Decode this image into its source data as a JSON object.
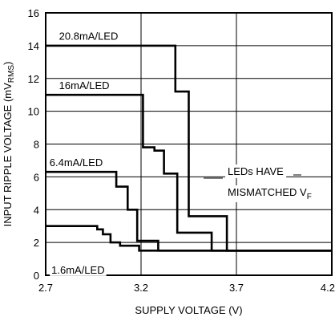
{
  "chart_data": {
    "type": "line",
    "title": "",
    "xlabel": "SUPPLY VOLTAGE (V)",
    "ylabel": {
      "prefix": "INPUT RIPPLE VOLTAGE (mV",
      "sub": "RMS",
      "suffix": ")"
    },
    "xlim": [
      2.7,
      4.2
    ],
    "ylim": [
      0,
      16
    ],
    "grid": true,
    "x_ticks": [
      2.7,
      3.2,
      3.7,
      4.2
    ],
    "x_tick_labels": [
      "2.7",
      "3.2",
      "3.7",
      "4.2"
    ],
    "y_ticks": [
      0,
      2,
      4,
      6,
      8,
      10,
      12,
      14,
      16
    ],
    "y_tick_labels": [
      "0",
      "2",
      "4",
      "6",
      "8",
      "10",
      "12",
      "14",
      "16"
    ],
    "series": [
      {
        "name": "20.8mA/LED",
        "x": [
          2.7,
          3.38,
          3.38,
          3.45,
          3.45,
          3.47,
          3.47,
          3.65,
          3.65,
          4.2
        ],
        "y": [
          14.0,
          14.0,
          11.2,
          11.2,
          3.6,
          3.6,
          3.6,
          3.6,
          1.5,
          1.5
        ]
      },
      {
        "name": "16mA/LED",
        "x": [
          2.7,
          3.21,
          3.21,
          3.27,
          3.27,
          3.32,
          3.32,
          3.39,
          3.39,
          3.57,
          3.57,
          4.2
        ],
        "y": [
          11.0,
          11.0,
          7.8,
          7.8,
          7.6,
          7.6,
          6.2,
          6.2,
          2.6,
          2.6,
          1.5,
          1.5
        ]
      },
      {
        "name": "6.4mA/LED",
        "x": [
          2.7,
          3.07,
          3.07,
          3.13,
          3.13,
          3.18,
          3.18,
          3.22,
          3.22,
          3.29,
          3.29,
          4.2
        ],
        "y": [
          6.3,
          6.3,
          5.4,
          5.4,
          4.0,
          4.0,
          2.1,
          2.1,
          2.1,
          2.1,
          1.5,
          1.5
        ]
      },
      {
        "name": "1.6mA/LED",
        "x": [
          2.7,
          2.97,
          2.97,
          3.0,
          3.0,
          3.04,
          3.04,
          3.09,
          3.09,
          3.19,
          3.19,
          4.2
        ],
        "y": [
          3.0,
          3.0,
          2.8,
          2.8,
          2.5,
          2.5,
          2.0,
          2.0,
          1.8,
          1.8,
          1.5,
          1.5
        ]
      }
    ],
    "series_labels": [
      {
        "text": "20.8mA/LED",
        "x": 2.77,
        "y": 14.6
      },
      {
        "text": "16mA/LED",
        "x": 2.77,
        "y": 11.6
      },
      {
        "text": "6.4mA/LED",
        "x": 2.72,
        "y": 6.9
      },
      {
        "text": "1.6mA/LED",
        "x": 2.73,
        "y": 0.35
      }
    ],
    "annotation": {
      "line1": "LEDs HAVE",
      "line2_prefix": "MISMATCHED V",
      "line2_sub": "F"
    }
  }
}
